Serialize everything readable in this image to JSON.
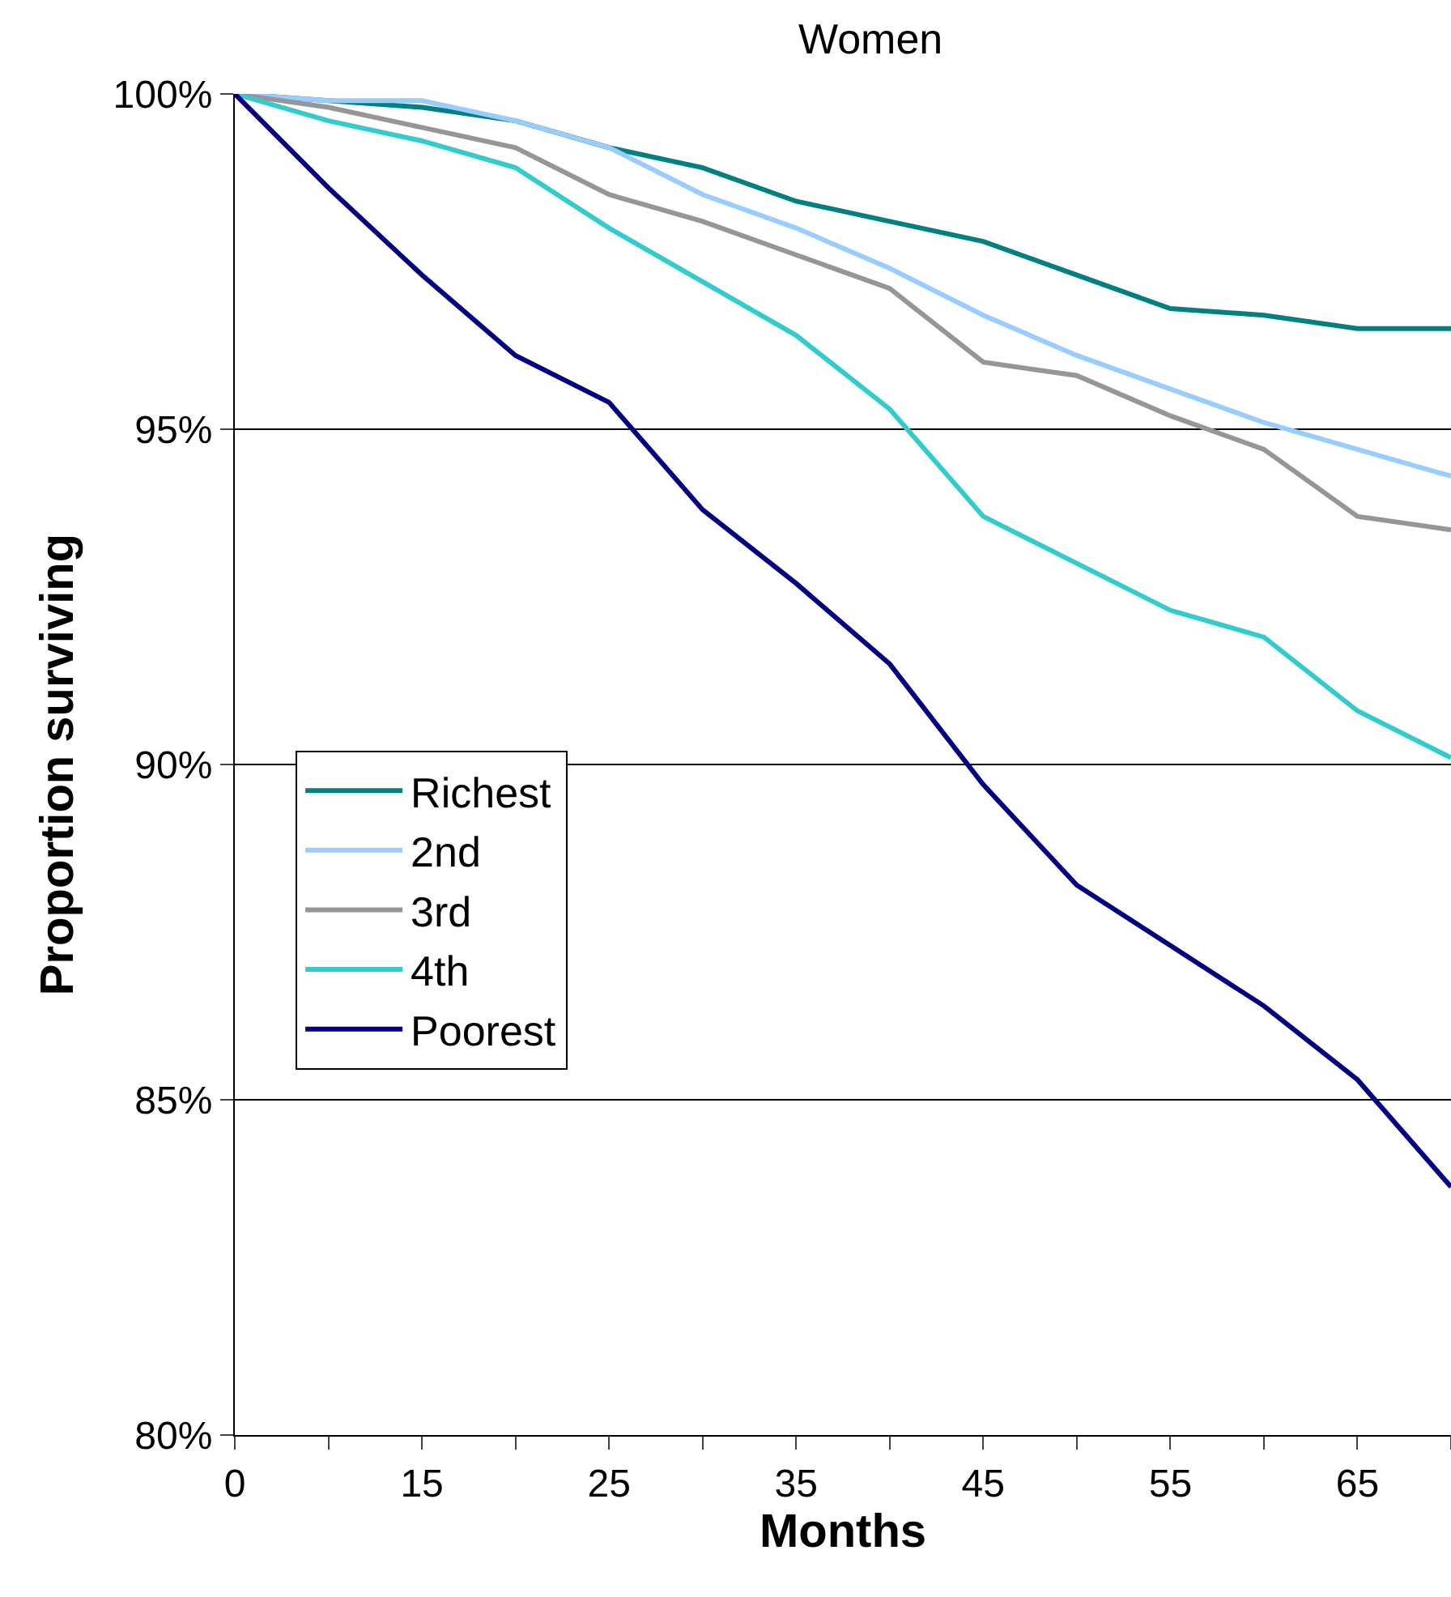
{
  "chart_data": {
    "type": "line",
    "title": "Women",
    "xlabel": "Months",
    "ylabel": "Proportion surviving",
    "categories": [
      "0",
      null,
      "15",
      null,
      "25",
      null,
      "35",
      null,
      "45",
      null,
      "55",
      null,
      "65",
      null
    ],
    "series": [
      {
        "name": "Richest",
        "color": "#008080",
        "values": [
          100,
          99.9,
          99.8,
          99.6,
          99.2,
          98.9,
          98.4,
          98.1,
          97.8,
          97.3,
          96.8,
          96.7,
          96.5,
          96.5
        ]
      },
      {
        "name": "2nd",
        "color": "#99ccff",
        "values": [
          100,
          99.9,
          99.9,
          99.6,
          99.2,
          98.5,
          98.0,
          97.4,
          96.7,
          96.1,
          95.6,
          95.1,
          94.7,
          94.3
        ]
      },
      {
        "name": "3rd",
        "color": "#969696",
        "values": [
          100,
          99.8,
          99.5,
          99.2,
          98.5,
          98.1,
          97.6,
          97.1,
          96.0,
          95.8,
          95.2,
          94.7,
          93.7,
          93.5
        ]
      },
      {
        "name": "4th",
        "color": "#33cccc",
        "values": [
          100,
          99.6,
          99.3,
          98.9,
          98.0,
          97.2,
          96.4,
          95.3,
          93.7,
          93.0,
          92.3,
          91.9,
          90.8,
          90.1
        ]
      },
      {
        "name": "Poorest",
        "color": "#000080",
        "values": [
          100,
          98.6,
          97.3,
          96.1,
          95.4,
          93.8,
          92.7,
          91.5,
          89.7,
          88.2,
          87.3,
          86.4,
          85.3,
          83.7
        ]
      }
    ],
    "ylim": [
      80,
      100
    ],
    "yticks": [
      {
        "value": 80,
        "label": "80%"
      },
      {
        "value": 85,
        "label": "85%"
      },
      {
        "value": 90,
        "label": "90%"
      },
      {
        "value": 95,
        "label": "95%"
      },
      {
        "value": 100,
        "label": "100%"
      }
    ],
    "grid": "y",
    "legend": "left",
    "marker": "none",
    "line_style": "solid"
  }
}
